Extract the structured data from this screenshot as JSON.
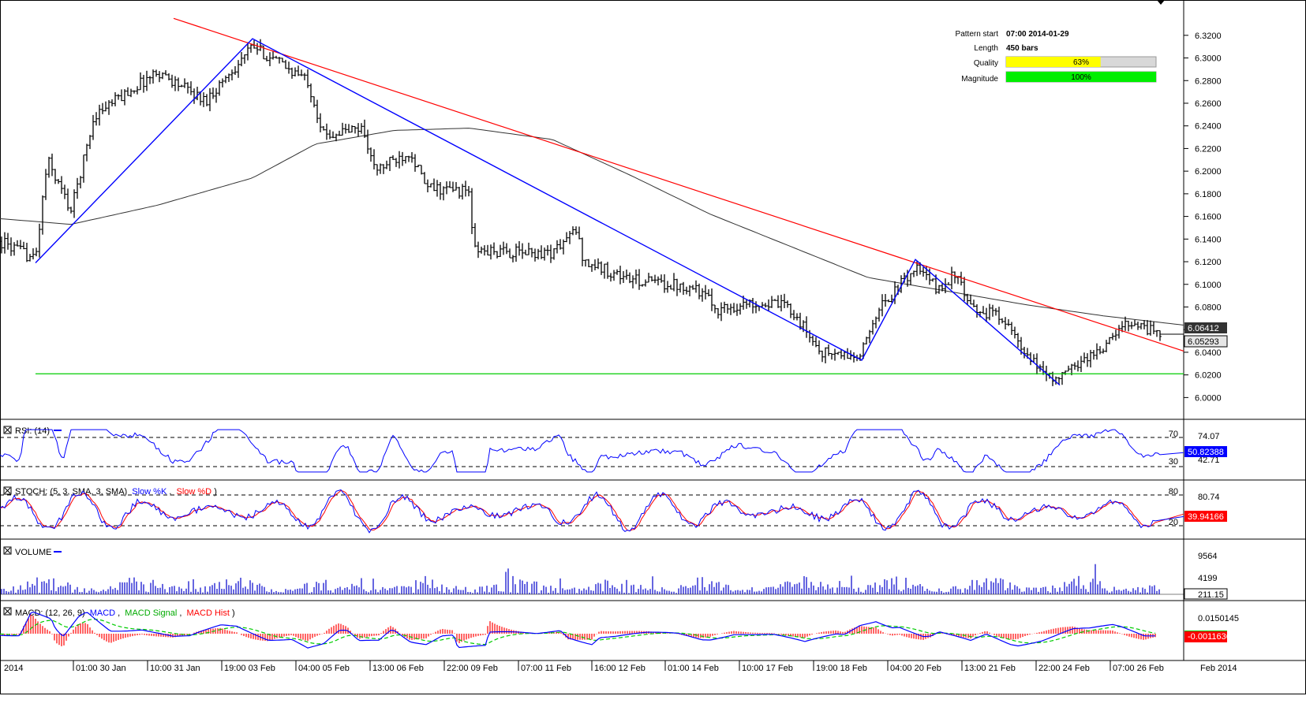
{
  "pattern_info": {
    "start_label": "Pattern start",
    "start_value": "07:00 2014-01-29",
    "length_label": "Length",
    "length_value": "450 bars",
    "quality_label": "Quality",
    "quality_text": "63%",
    "quality_fraction": 0.63,
    "magnitude_label": "Magnitude",
    "magnitude_text": "100%",
    "magnitude_fraction": 1.0
  },
  "panels": {
    "rsi": {
      "title": "RSI: (14)",
      "level_high": "70",
      "level_low": "30",
      "axis_top": "74.07",
      "axis_low": "42.71",
      "current": "50.82388"
    },
    "stoch": {
      "title_prefix": "STOCH: (5, 3, SMA, 3, SMA)",
      "slow_k": "Slow %K",
      "slow_d": "Slow %D",
      "level_high": "80",
      "level_low": "20",
      "axis_top": "80.74",
      "current": "39.94166"
    },
    "volume": {
      "title": "VOLUME",
      "axis_top": "9564",
      "axis_mid": "4199",
      "current": "211.15"
    },
    "macd": {
      "title_prefix": "MACD: (12, 26, 9)",
      "macd": "MACD",
      "signal": "MACD Signal",
      "hist": "MACD Hist",
      "axis_top": "0.0150145",
      "current": "-0.0011636"
    }
  },
  "x_labels": [
    "2014",
    "01:00 30 Jan",
    "10:00 31 Jan",
    "19:00 03 Feb",
    "04:00 05 Feb",
    "13:00 06 Feb",
    "22:00 09 Feb",
    "07:00 11 Feb",
    "16:00 12 Feb",
    "01:00 14 Feb",
    "10:00 17 Feb",
    "19:00 18 Feb",
    "04:00 20 Feb",
    "13:00 21 Feb",
    "22:00 24 Feb",
    "07:00 26 Feb",
    "Feb 2014"
  ],
  "colors": {
    "price_bar": "#000000",
    "resistance_line": "#ff0000",
    "pattern_line": "#0000ff",
    "support_line": "#00cc00",
    "moving_average": "#333333",
    "rsi_line": "#0000ff",
    "stoch_k": "#0000ff",
    "stoch_d": "#ff0000",
    "volume_bar": "#0000cc",
    "macd_line": "#0000ff",
    "macd_signal": "#00cc00",
    "macd_hist": "#ff0000",
    "quality_fill": "#ffff00",
    "magnitude_fill": "#00ee00"
  },
  "chart_data": {
    "type": "line",
    "y_ticks": [
      "6.3200",
      "6.3000",
      "6.2800",
      "6.2600",
      "6.2400",
      "6.2200",
      "6.2000",
      "6.1800",
      "6.1600",
      "6.1400",
      "6.1200",
      "6.1000",
      "6.0800",
      "6.0600",
      "6.0400",
      "6.0200",
      "6.0000"
    ],
    "ylim": [
      5.9926,
      6.3324
    ],
    "price_label_ma": "6.06412",
    "price_label_last": "6.05293",
    "price_keypoints": [
      [
        0,
        6.138
      ],
      [
        45,
        6.122
      ],
      [
        60,
        6.21
      ],
      [
        90,
        6.165
      ],
      [
        120,
        6.25
      ],
      [
        200,
        6.288
      ],
      [
        260,
        6.262
      ],
      [
        320,
        6.31
      ],
      [
        390,
        6.28
      ],
      [
        410,
        6.232
      ],
      [
        460,
        6.238
      ],
      [
        475,
        6.2
      ],
      [
        520,
        6.218
      ],
      [
        540,
        6.185
      ],
      [
        595,
        6.182
      ],
      [
        600,
        6.13
      ],
      [
        640,
        6.128
      ],
      [
        700,
        6.128
      ],
      [
        730,
        6.148
      ],
      [
        740,
        6.12
      ],
      [
        800,
        6.104
      ],
      [
        880,
        6.098
      ],
      [
        910,
        6.078
      ],
      [
        960,
        6.084
      ],
      [
        1000,
        6.08
      ],
      [
        1040,
        6.04
      ],
      [
        1090,
        6.035
      ],
      [
        1110,
        6.075
      ],
      [
        1160,
        6.115
      ],
      [
        1190,
        6.095
      ],
      [
        1210,
        6.11
      ],
      [
        1230,
        6.078
      ],
      [
        1270,
        6.072
      ],
      [
        1300,
        6.035
      ],
      [
        1340,
        6.015
      ],
      [
        1365,
        6.03
      ],
      [
        1400,
        6.045
      ],
      [
        1430,
        6.068
      ],
      [
        1470,
        6.056
      ]
    ],
    "moving_average": [
      [
        0,
        6.158
      ],
      [
        90,
        6.153
      ],
      [
        200,
        6.17
      ],
      [
        320,
        6.194
      ],
      [
        400,
        6.224
      ],
      [
        500,
        6.236
      ],
      [
        595,
        6.238
      ],
      [
        700,
        6.228
      ],
      [
        800,
        6.196
      ],
      [
        900,
        6.162
      ],
      [
        1000,
        6.134
      ],
      [
        1100,
        6.106
      ],
      [
        1200,
        6.094
      ],
      [
        1300,
        6.082
      ],
      [
        1400,
        6.072
      ],
      [
        1500,
        6.064
      ]
    ],
    "resistance_line": [
      [
        220,
        6.335
      ],
      [
        1500,
        6.041
      ]
    ],
    "support_line": [
      [
        45,
        6.021
      ],
      [
        1500,
        6.021
      ]
    ],
    "pattern_zigzag": [
      [
        45,
        6.119
      ],
      [
        320,
        6.317
      ],
      [
        1092,
        6.033
      ],
      [
        1160,
        6.122
      ],
      [
        1343,
        6.011
      ]
    ],
    "rsi_lim": [
      23,
      82
    ],
    "stoch_lim": [
      0,
      100
    ],
    "volume_lim": [
      0,
      12000
    ],
    "macd_lim": [
      -0.022,
      0.022
    ]
  }
}
